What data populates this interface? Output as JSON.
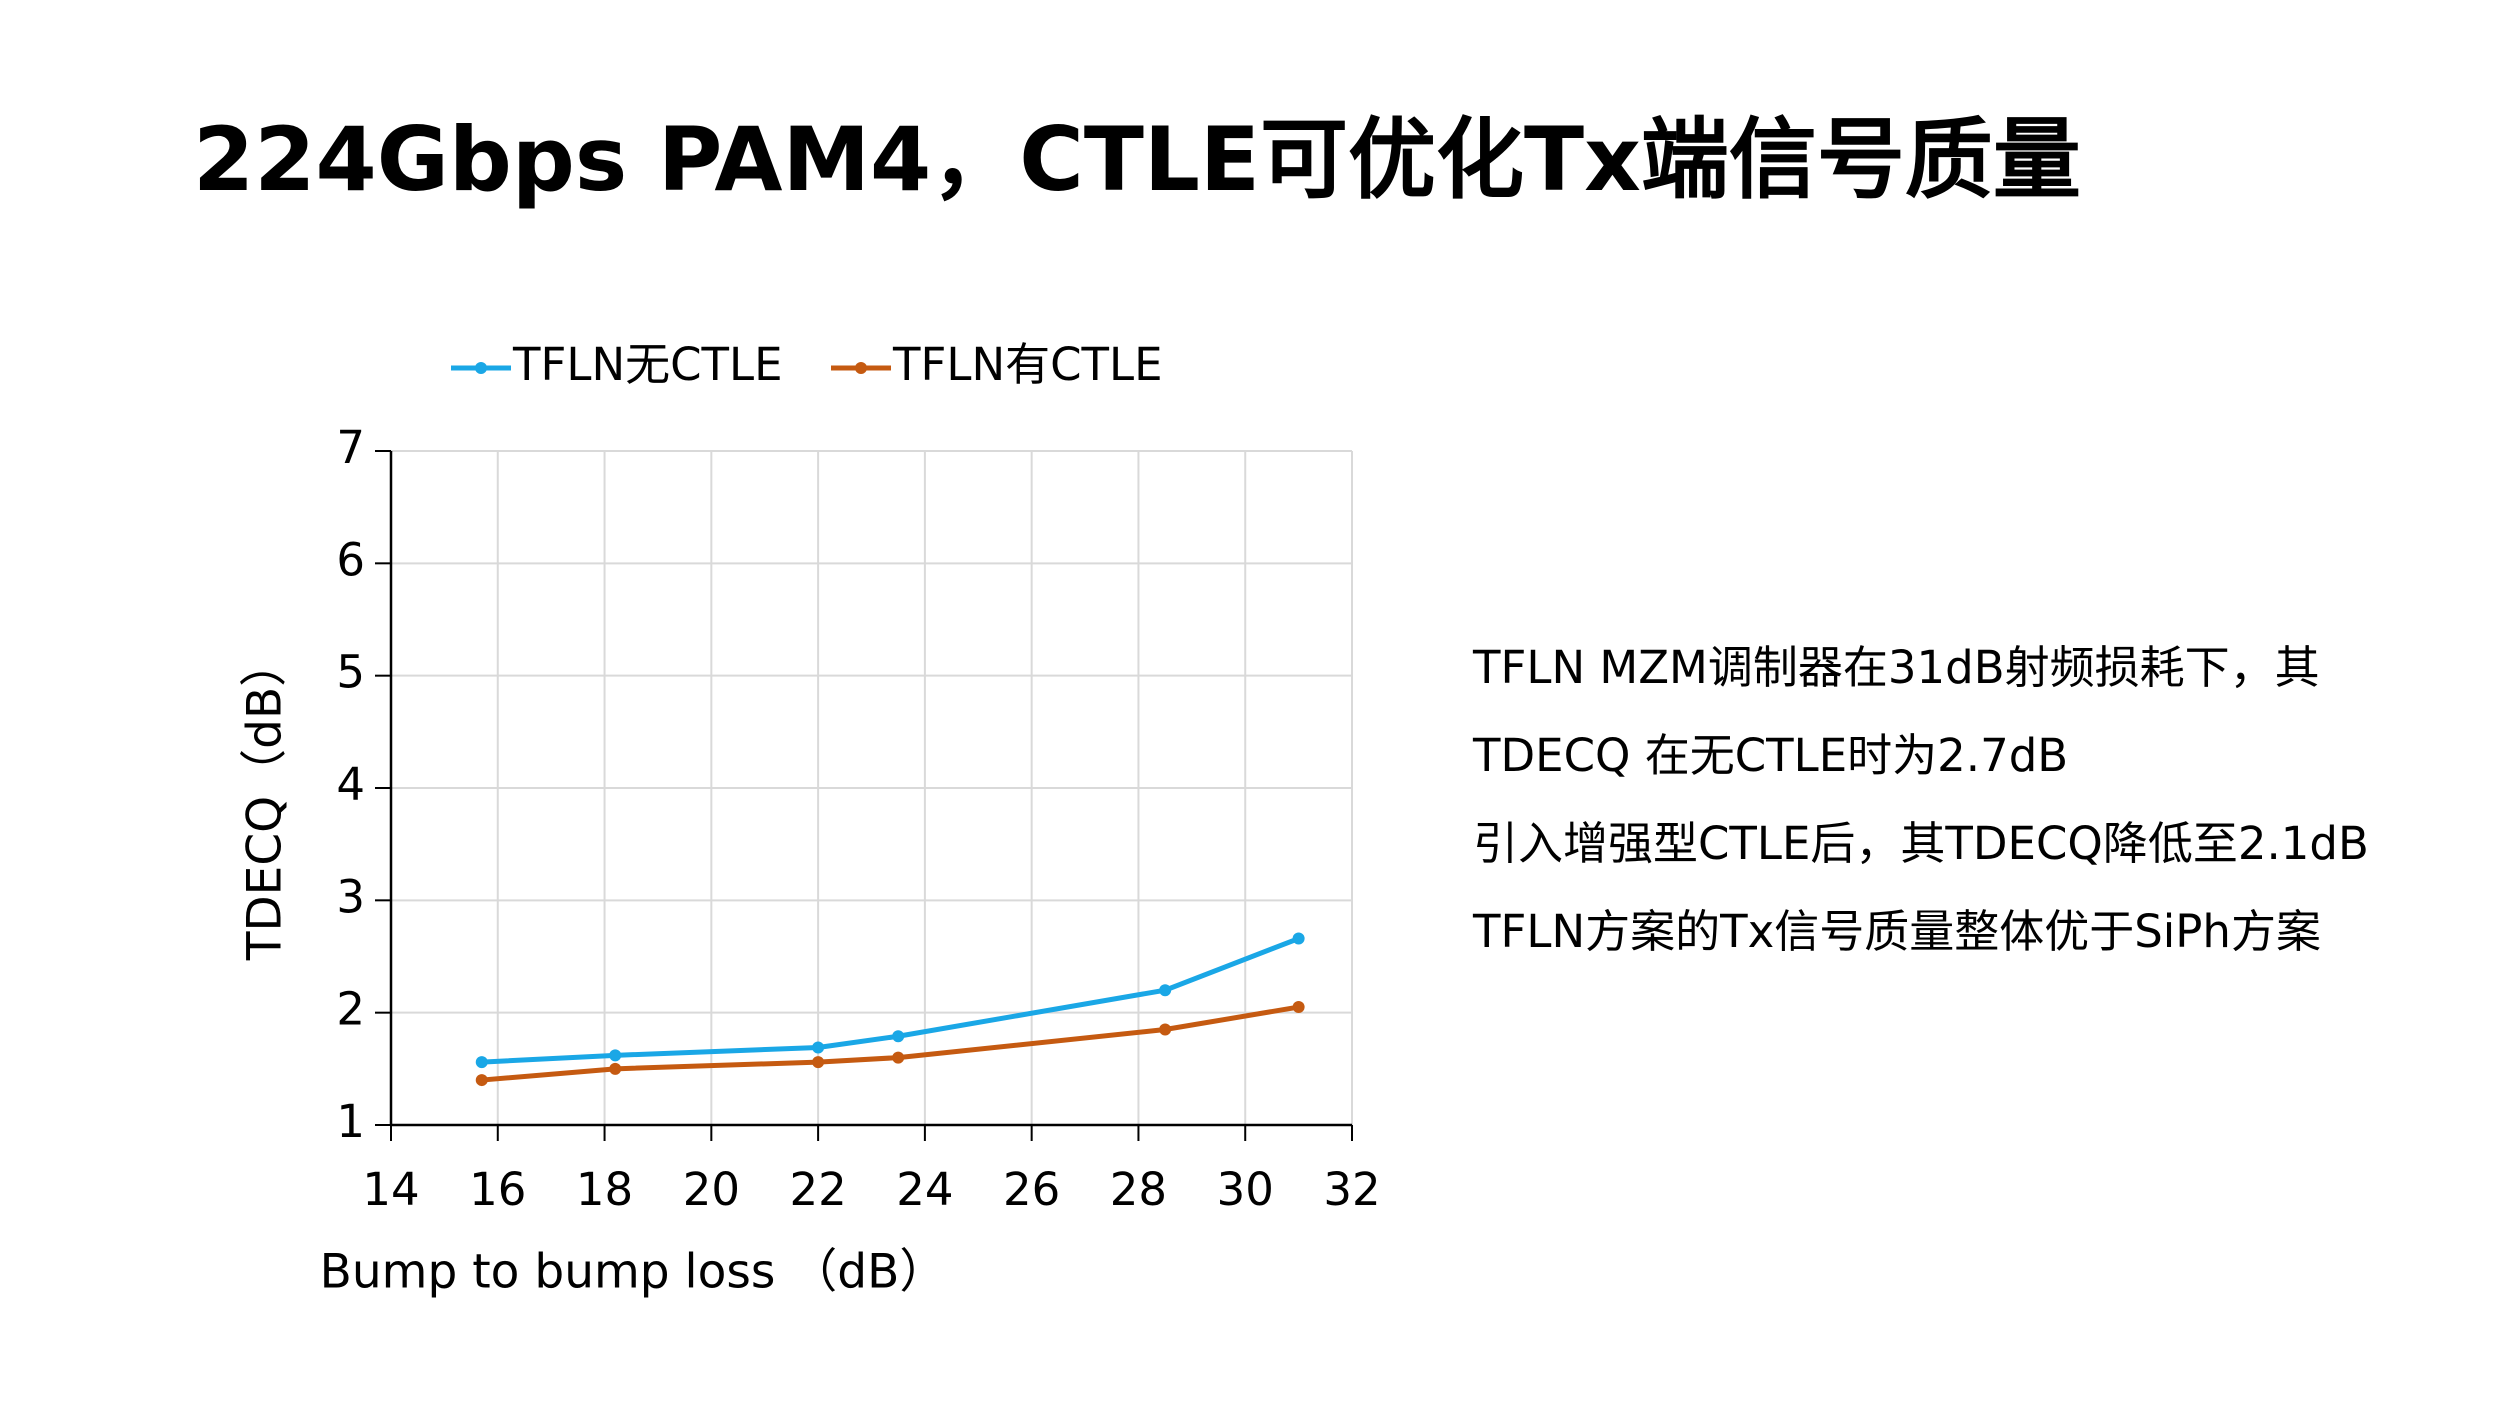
{
  "header": {
    "title": "224Gbps PAM4，CTLE可优化Tx端信号质量"
  },
  "chart_data": {
    "type": "line",
    "x_label": "Bump to bump loss （dB）",
    "y_label": "TDECQ（dB）",
    "x": [
      15.7,
      18.2,
      22,
      23.5,
      28.5,
      31
    ],
    "series": [
      {
        "name": "TFLN无CTLE",
        "color": "#1aa7e6",
        "values": [
          1.56,
          1.62,
          1.69,
          1.79,
          2.2,
          2.66
        ]
      },
      {
        "name": "TFLN有CTLE",
        "color": "#c55a11",
        "values": [
          1.4,
          1.5,
          1.56,
          1.6,
          1.85,
          2.05
        ]
      }
    ],
    "xlim": [
      14,
      32
    ],
    "xticks": [
      14,
      16,
      18,
      20,
      22,
      24,
      26,
      28,
      30,
      32
    ],
    "ylim": [
      1,
      7
    ],
    "yticks": [
      1,
      2,
      3,
      4,
      5,
      6,
      7
    ],
    "grid": true,
    "legend": "top"
  },
  "notes": [
    "TFLN MZM调制器在31dB射频损耗下，其",
    "TDECQ 在无CTLE时为2.7dB",
    "引入增强型CTLE后，其TDECQ降低至2.1dB",
    "TFLN方案的Tx信号质量整体优于SiPh方案"
  ]
}
